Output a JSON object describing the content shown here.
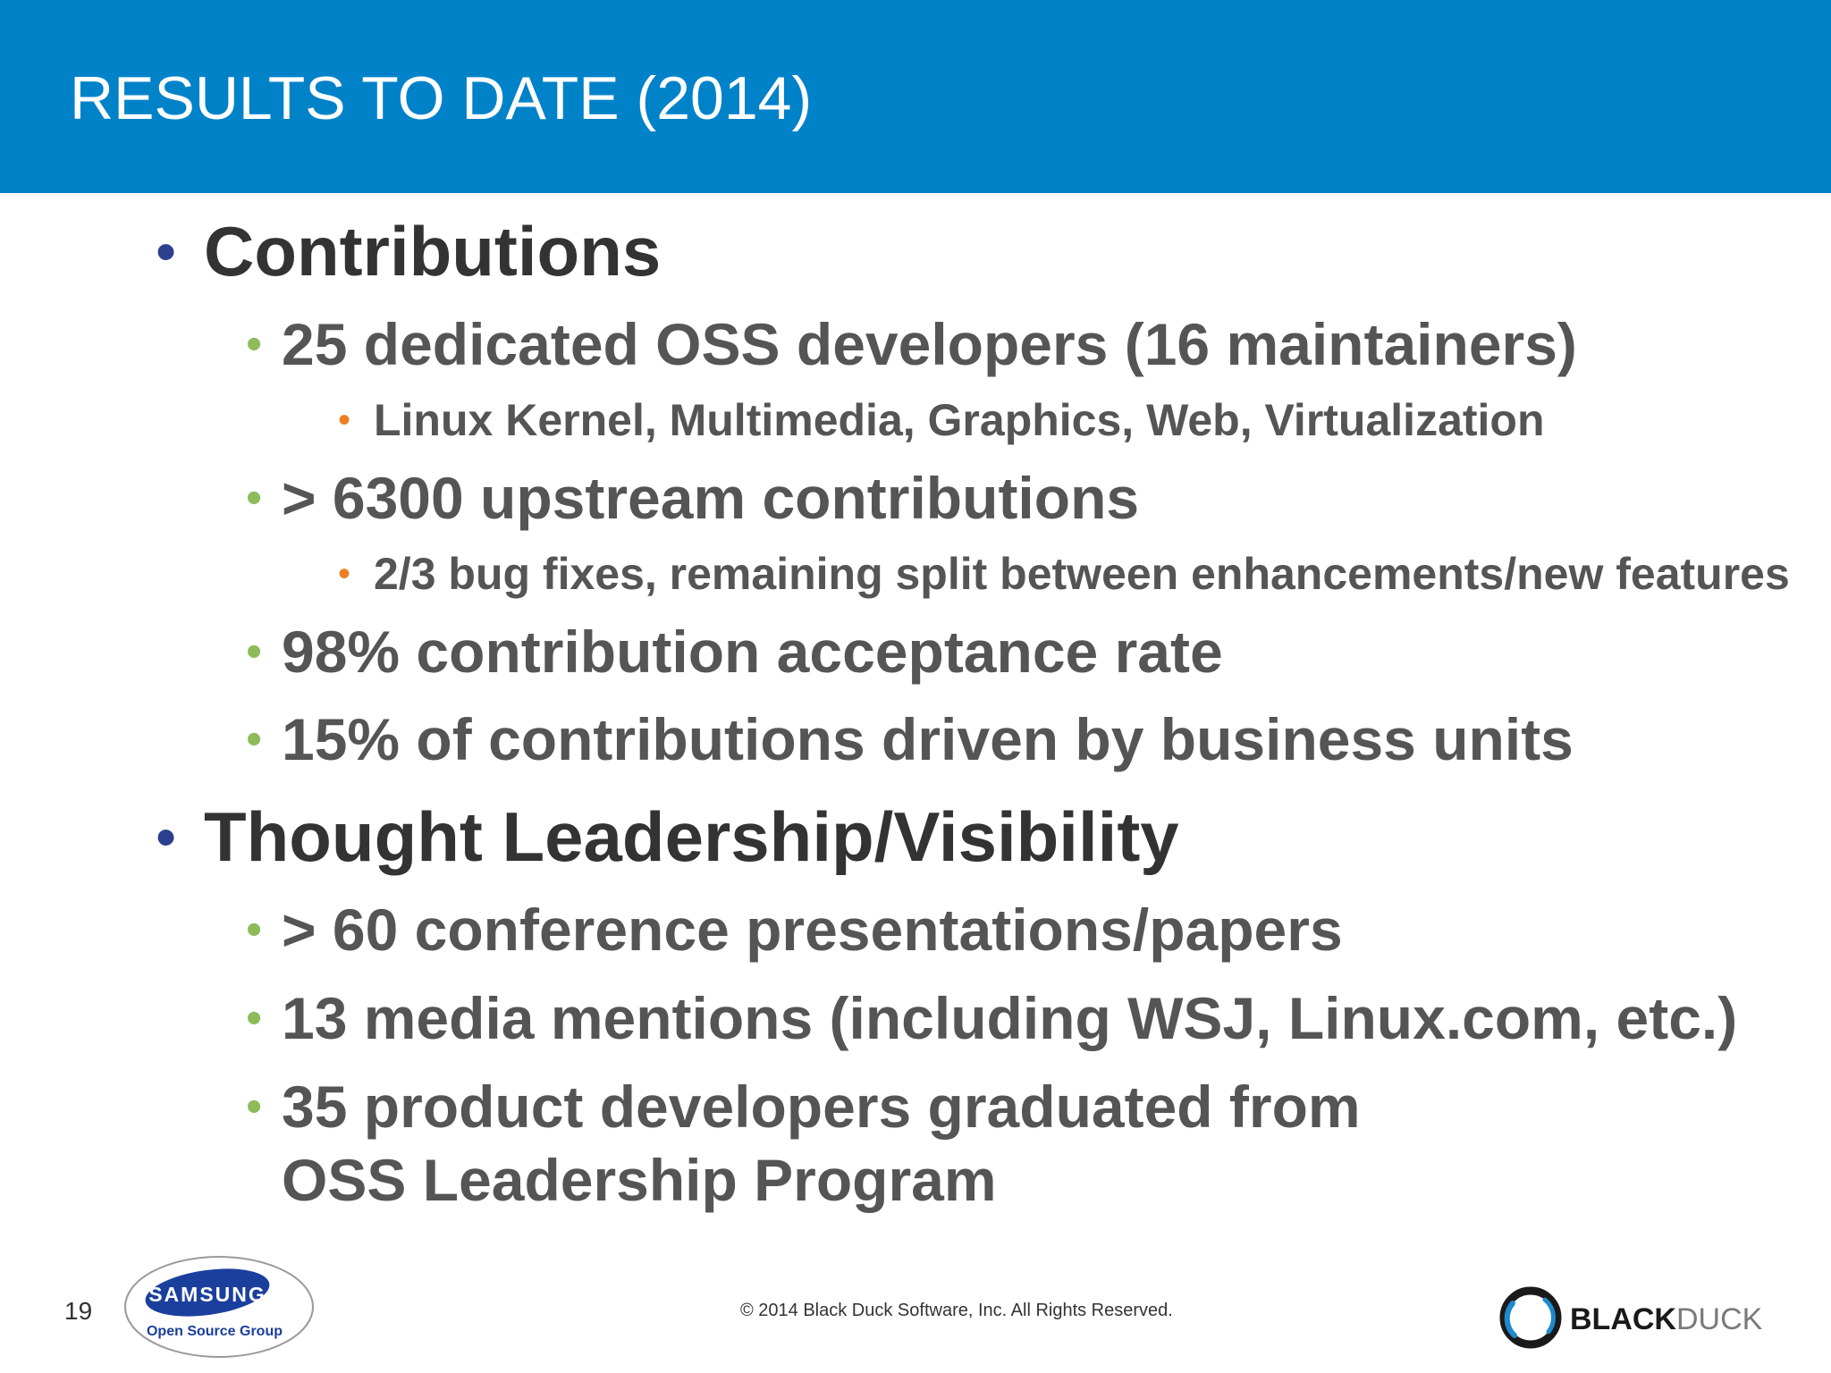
{
  "header": {
    "title": "RESULTS TO DATE (2014)",
    "color": "#0082c9"
  },
  "content": {
    "items": [
      {
        "level": 1,
        "text": "Contributions"
      },
      {
        "level": 2,
        "text": "25 dedicated OSS developers (16 maintainers)"
      },
      {
        "level": 3,
        "text": "Linux Kernel, Multimedia, Graphics, Web, Virtualization"
      },
      {
        "level": 2,
        "text": "> 6300 upstream contributions"
      },
      {
        "level": 3,
        "text": "2/3 bug fixes, remaining split between enhancements/new features"
      },
      {
        "level": 2,
        "text": "98% contribution acceptance rate"
      },
      {
        "level": 2,
        "text": "15% of contributions driven by business units"
      },
      {
        "level": 1,
        "text": "Thought Leadership/Visibility"
      },
      {
        "level": 2,
        "text": "> 60 conference presentations/papers"
      },
      {
        "level": 2,
        "text": "13 media mentions (including WSJ, Linux.com, etc.)"
      },
      {
        "level": 2,
        "text": "35 product developers graduated from"
      },
      {
        "level": 2,
        "text": "OSS Leadership Program",
        "continuation": true
      }
    ],
    "bullet_colors": {
      "level1": "#2b3f8f",
      "level2": "#8dbb5a",
      "level3": "#ee7d23"
    }
  },
  "footer": {
    "page_number": "19",
    "copyright": "© 2014 Black Duck Software, Inc.  All Rights Reserved.",
    "samsung_logo": {
      "brand": "SAMSUNG",
      "sub": "Open Source Group"
    },
    "blackduck_logo": {
      "bold": "BLACK",
      "light": "DUCK"
    }
  }
}
